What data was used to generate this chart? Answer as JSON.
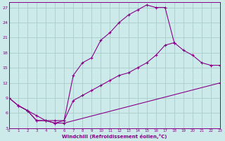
{
  "xlabel": "Windchill (Refroidissement éolien,°C)",
  "xlim": [
    0,
    23
  ],
  "ylim": [
    3,
    28
  ],
  "yticks": [
    3,
    6,
    9,
    12,
    15,
    18,
    21,
    24,
    27
  ],
  "xticks": [
    0,
    1,
    2,
    3,
    4,
    5,
    6,
    7,
    8,
    9,
    10,
    11,
    12,
    13,
    14,
    15,
    16,
    17,
    18,
    19,
    20,
    21,
    22,
    23
  ],
  "background_color": "#cceaea",
  "grid_color": "#aacccc",
  "line_color": "#880088",
  "line1_x": [
    0,
    1,
    2,
    3,
    4,
    5,
    6,
    23
  ],
  "line1_y": [
    9,
    7.5,
    6.5,
    4.5,
    4.5,
    4.0,
    4.0,
    12
  ],
  "line2_x": [
    0,
    1,
    2,
    3,
    4,
    5,
    6,
    7,
    8,
    9,
    10,
    11,
    12,
    13,
    14,
    15,
    16,
    17,
    18
  ],
  "line2_y": [
    9,
    7.5,
    6.5,
    4.5,
    4.5,
    4.0,
    4.5,
    13.5,
    16,
    17,
    20.5,
    22,
    24,
    25.5,
    26.5,
    27.5,
    27,
    27,
    20
  ],
  "line3_x": [
    1,
    2,
    3,
    4,
    5,
    6,
    7,
    8,
    9,
    10,
    11,
    12,
    13,
    14,
    15,
    16,
    17,
    18,
    19,
    20,
    21,
    22,
    23
  ],
  "line3_y": [
    7.5,
    6.5,
    5.5,
    4.5,
    4.5,
    4.5,
    8.5,
    9.5,
    10.5,
    11.5,
    12.5,
    13.5,
    14.0,
    15.0,
    16.0,
    17.5,
    19.5,
    20,
    18.5,
    17.5,
    16.0,
    15.5,
    15.5
  ]
}
